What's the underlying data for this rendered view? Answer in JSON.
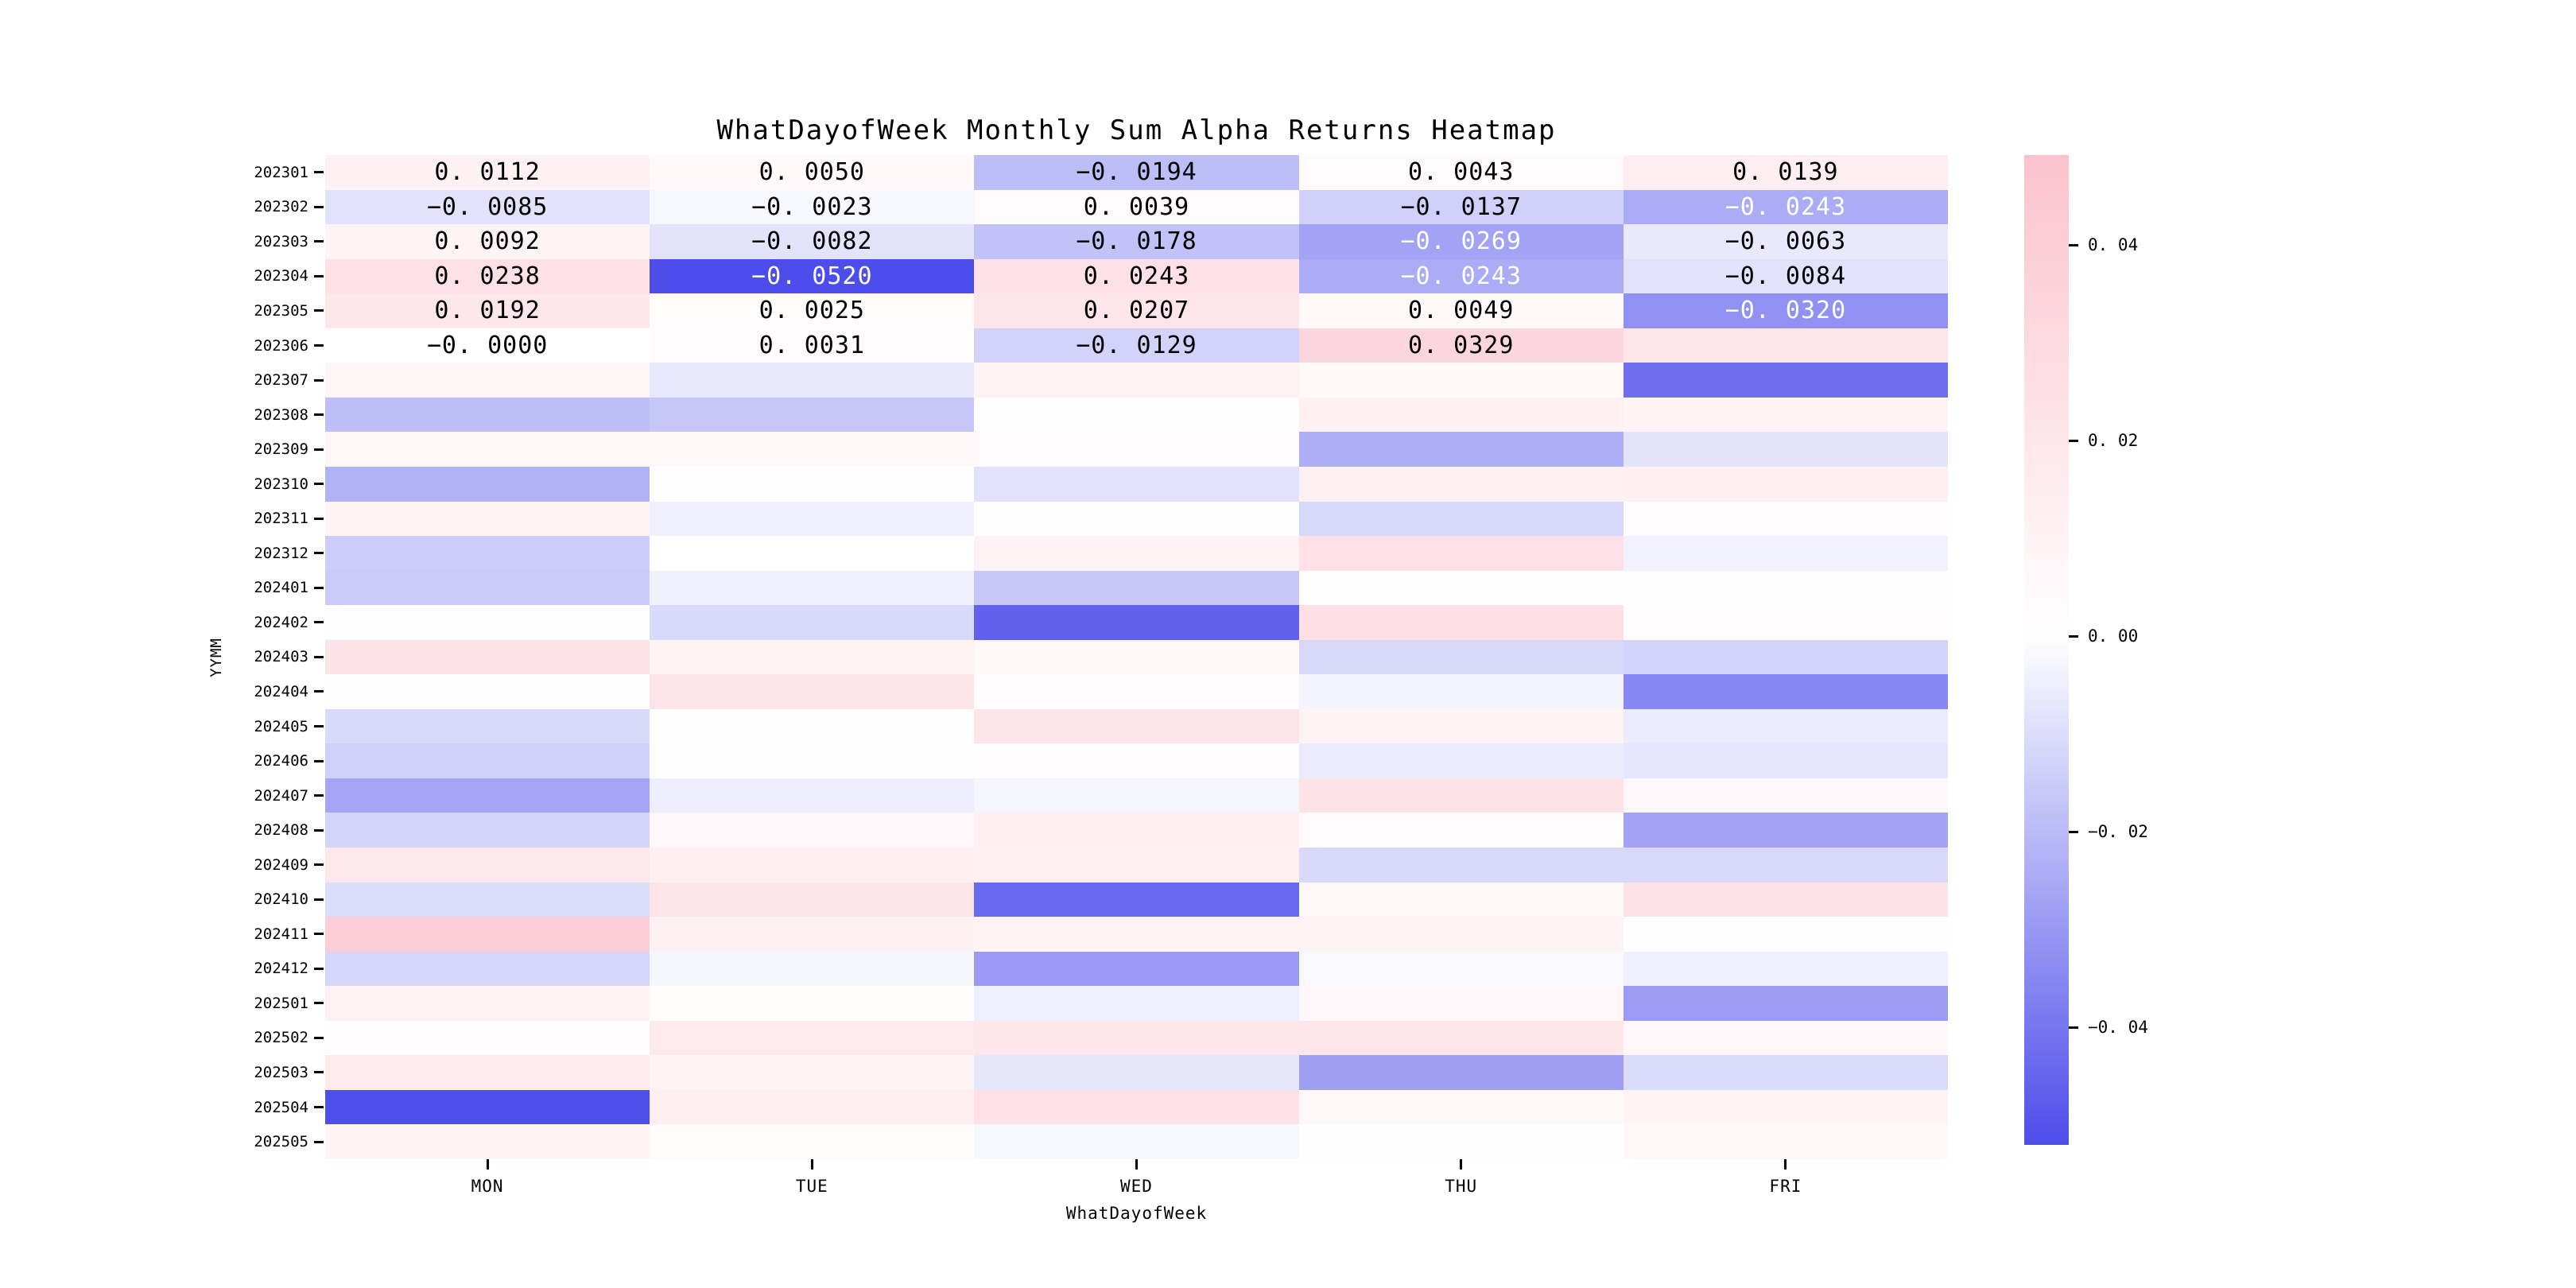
{
  "chart_data": {
    "type": "heatmap",
    "title": "WhatDayofWeek Monthly Sum Alpha Returns Heatmap",
    "xlabel": "WhatDayofWeek",
    "ylabel": "YYMM",
    "columns": [
      "MON",
      "TUE",
      "WED",
      "THU",
      "FRI"
    ],
    "rows": [
      "202301",
      "202302",
      "202303",
      "202304",
      "202305",
      "202306",
      "202307",
      "202308",
      "202309",
      "202310",
      "202311",
      "202312",
      "202401",
      "202402",
      "202403",
      "202404",
      "202405",
      "202406",
      "202407",
      "202408",
      "202409",
      "202410",
      "202411",
      "202412",
      "202501",
      "202502",
      "202503",
      "202504",
      "202505"
    ],
    "values": [
      [
        0.0112,
        0.005,
        -0.0194,
        0.0043,
        0.0139
      ],
      [
        -0.0085,
        -0.0023,
        0.0039,
        -0.0137,
        -0.0243
      ],
      [
        0.0092,
        -0.0082,
        -0.0178,
        -0.0269,
        -0.0063
      ],
      [
        0.0238,
        -0.052,
        0.0243,
        -0.0243,
        -0.0084
      ],
      [
        0.0192,
        0.0025,
        0.0207,
        0.0049,
        -0.032
      ],
      [
        -0.0,
        0.0031,
        -0.0129,
        0.0329,
        0.021
      ],
      [
        0.008,
        -0.0066,
        0.0105,
        0.0048,
        -0.0424
      ],
      [
        -0.0187,
        -0.0166,
        0.0005,
        0.0121,
        0.0089
      ],
      [
        0.0064,
        0.0056,
        0.003,
        -0.0237,
        -0.0083
      ],
      [
        -0.0228,
        0.0012,
        -0.0086,
        0.0113,
        0.0129
      ],
      [
        0.0089,
        -0.004,
        0.001,
        -0.0115,
        0.0015
      ],
      [
        -0.0146,
        0.0003,
        0.0105,
        0.0242,
        -0.0037
      ],
      [
        -0.0152,
        -0.0043,
        -0.0166,
        0.0005,
        0.0005
      ],
      [
        0.0012,
        -0.0112,
        -0.0462,
        0.025,
        0.0015
      ],
      [
        0.0234,
        0.0097,
        0.0056,
        -0.0118,
        -0.0129
      ],
      [
        0.0008,
        0.0218,
        0.002,
        -0.0032,
        -0.0348
      ],
      [
        -0.0112,
        0.001,
        0.0218,
        0.0089,
        -0.0057
      ],
      [
        -0.0138,
        0.0006,
        0.0015,
        -0.0057,
        -0.0072
      ],
      [
        -0.0263,
        -0.0052,
        -0.003,
        0.0234,
        0.0072
      ],
      [
        -0.0124,
        0.0073,
        0.0129,
        0.004,
        -0.0269
      ],
      [
        0.0186,
        0.0129,
        0.0121,
        -0.011,
        -0.0115
      ],
      [
        -0.0101,
        0.0218,
        -0.0435,
        0.0064,
        0.0226
      ],
      [
        0.0392,
        0.0113,
        0.0089,
        0.0105,
        0.0005
      ],
      [
        -0.0121,
        -0.0026,
        -0.0295,
        -0.002,
        -0.0046
      ],
      [
        0.0105,
        0.0025,
        -0.0049,
        0.0072,
        -0.0292
      ],
      [
        0.002,
        0.0178,
        0.0194,
        0.0202,
        0.0072
      ],
      [
        0.0178,
        0.0089,
        -0.0069,
        -0.028,
        -0.0107
      ],
      [
        -0.0517,
        0.0137,
        0.0242,
        0.0056,
        0.0089
      ],
      [
        0.0097,
        0.0025,
        -0.0023,
        0.001,
        0.0064
      ]
    ],
    "annotations": [
      [
        "0. 0112",
        "0. 0050",
        "−0. 0194",
        "0. 0043",
        "0. 0139"
      ],
      [
        "−0. 0085",
        "−0. 0023",
        "0. 0039",
        "−0. 0137",
        "−0. 0243"
      ],
      [
        "0. 0092",
        "−0. 0082",
        "−0. 0178",
        "−0. 0269",
        "−0. 0063"
      ],
      [
        "0. 0238",
        "−0. 0520",
        "0. 0243",
        "−0. 0243",
        "−0. 0084"
      ],
      [
        "0. 0192",
        "0. 0025",
        "0. 0207",
        "0. 0049",
        "−0. 0320"
      ],
      [
        "−0. 0000",
        "0. 0031",
        "−0. 0129",
        "0. 0329",
        null
      ]
    ],
    "colormap": {
      "negative_end": "#4d4deb",
      "center": "#ffffff",
      "positive_end": "#fbc2cd",
      "vmin": -0.052,
      "vmax": 0.0492,
      "white_text_below": -0.022
    },
    "colorbar": {
      "tick_labels": [
        "0. 04",
        "0. 02",
        "0. 00",
        "−0. 02",
        "−0. 04"
      ],
      "tick_values": [
        0.04,
        0.02,
        0.0,
        -0.02,
        -0.04
      ]
    },
    "layout": {
      "grid": "off",
      "legend": "colorbar-right",
      "annotated_rows": 6
    }
  }
}
